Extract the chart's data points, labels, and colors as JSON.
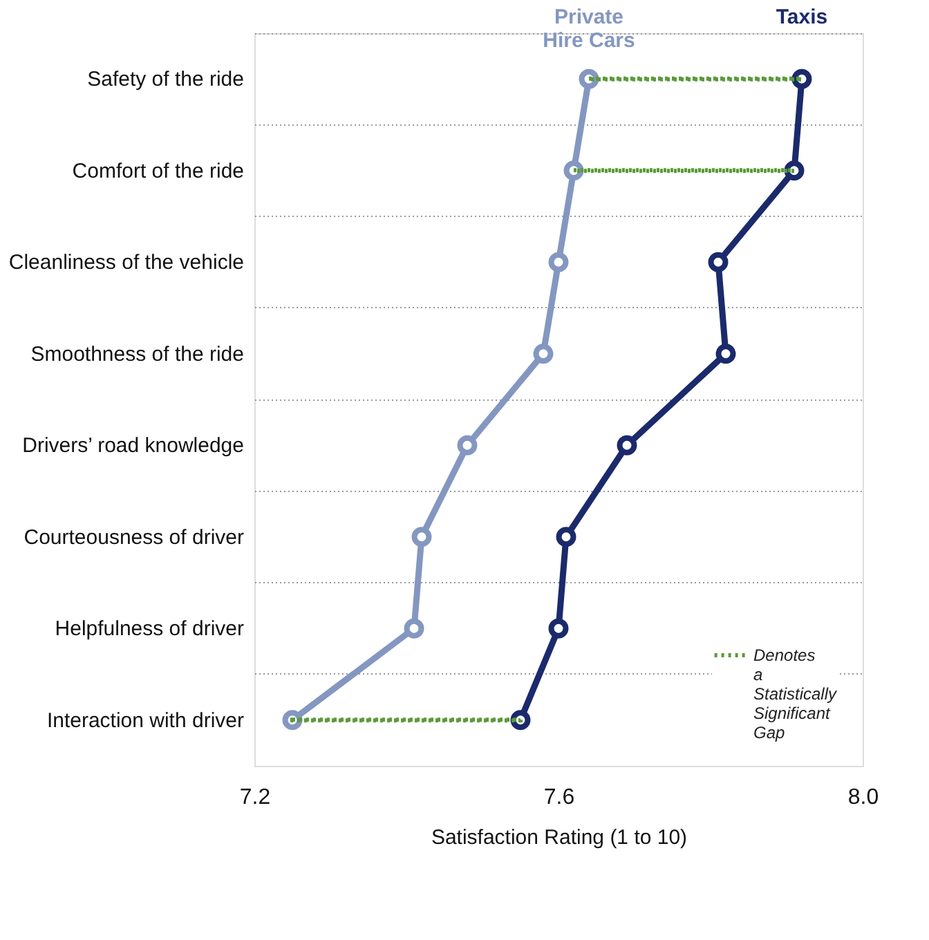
{
  "chart_data": {
    "type": "line",
    "orientation": "horizontal",
    "xlabel": "Satisfaction Rating (1 to 10)",
    "categories": [
      "Safety of the ride",
      "Comfort of the ride",
      "Cleanliness of the vehicle",
      "Smoothness of the ride",
      "Drivers’ road knowledge",
      "Courteousness of driver",
      "Helpfulness of driver",
      "Interaction with driver"
    ],
    "series": [
      {
        "name": "Private Hire Cars",
        "color": "#8497c0",
        "values": [
          7.64,
          7.62,
          7.6,
          7.58,
          7.48,
          7.42,
          7.41,
          7.25
        ]
      },
      {
        "name": "Taxis",
        "color": "#1b2a6b",
        "values": [
          7.92,
          7.91,
          7.81,
          7.82,
          7.69,
          7.61,
          7.6,
          7.55
        ]
      },
      {
        "name": "Denotes a Statistically Significant Gap",
        "type": "bar",
        "color": "#5a9a3a",
        "line_style": "dotted",
        "base": [
          7.64,
          7.62,
          null,
          null,
          null,
          null,
          null,
          7.25
        ],
        "values": [
          0.28,
          0.29,
          null,
          null,
          null,
          null,
          null,
          0.3
        ]
      }
    ],
    "xlim": [
      7.2,
      8.0
    ],
    "xticks": [
      7.2,
      7.6,
      {
        "value": 8.0,
        "label": "8.0"
      }
    ],
    "grid": "y",
    "marker": "circle",
    "line_style": "solid",
    "legend": "bottom right"
  }
}
